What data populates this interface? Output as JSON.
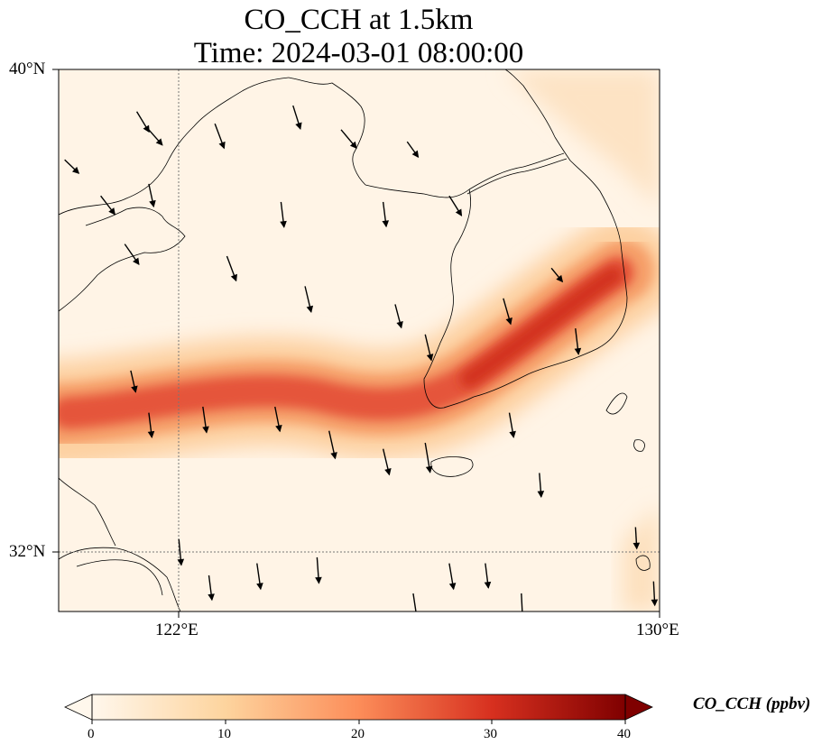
{
  "title": {
    "line1": "CO_CCH at 1.5km",
    "line2": "Time: 2024-03-01 08:00:00"
  },
  "axes": {
    "lat_ticks": [
      "40°N",
      "32°N"
    ],
    "lon_ticks": [
      "122°E",
      "130°E"
    ],
    "lat_range": [
      31,
      40
    ],
    "lon_range": [
      120,
      130
    ],
    "gridlines": "dotted at 122°E and 32°N"
  },
  "colorbar": {
    "label": "CO_CCH (ppbv)",
    "ticks": [
      "0",
      "10",
      "20",
      "30",
      "40"
    ],
    "range": [
      0,
      40
    ],
    "colormap": "OrRd",
    "extend": "both",
    "colors": [
      "#fff7ec",
      "#fdd49e",
      "#fc8d59",
      "#d7301f",
      "#7f0000"
    ]
  },
  "chart_data": {
    "type": "heatmap",
    "variable": "CO_CCH",
    "unit": "ppbv",
    "level": "1.5km",
    "time": "2024-03-01 08:00:00",
    "plume_band_path_lonlat": [
      [
        120.0,
        33.85
      ],
      [
        121.5,
        34.1
      ],
      [
        123.0,
        34.6
      ],
      [
        124.5,
        34.25
      ],
      [
        125.8,
        34.0
      ],
      [
        126.7,
        34.9
      ],
      [
        127.5,
        35.7
      ],
      [
        128.2,
        36.3
      ],
      [
        128.8,
        36.8
      ]
    ],
    "plume_peak_value": 25,
    "background_value": 2,
    "wind_vectors_lonlat": [
      [
        121.3,
        39.3,
        0.2,
        -0.33
      ],
      [
        121.5,
        39.0,
        0.22,
        -0.25
      ],
      [
        122.6,
        39.1,
        0.15,
        -0.4
      ],
      [
        123.9,
        39.4,
        0.12,
        -0.38
      ],
      [
        124.7,
        39.0,
        0.25,
        -0.3
      ],
      [
        125.8,
        38.8,
        0.18,
        -0.25
      ],
      [
        120.1,
        38.5,
        0.23,
        -0.22
      ],
      [
        120.7,
        37.9,
        0.23,
        -0.3
      ],
      [
        121.5,
        38.1,
        0.08,
        -0.37
      ],
      [
        123.7,
        37.8,
        0.05,
        -0.41
      ],
      [
        125.4,
        37.8,
        0.05,
        -0.4
      ],
      [
        126.5,
        37.9,
        0.2,
        -0.32
      ],
      [
        121.1,
        37.1,
        0.23,
        -0.33
      ],
      [
        122.8,
        36.9,
        0.15,
        -0.4
      ],
      [
        124.1,
        36.4,
        0.1,
        -0.42
      ],
      [
        125.6,
        36.1,
        0.1,
        -0.38
      ],
      [
        126.1,
        35.6,
        0.1,
        -0.42
      ],
      [
        127.4,
        36.2,
        0.12,
        -0.42
      ],
      [
        128.2,
        36.7,
        0.18,
        -0.22
      ],
      [
        128.6,
        35.7,
        0.05,
        -0.42
      ],
      [
        121.2,
        35.0,
        0.08,
        -0.35
      ],
      [
        121.5,
        34.3,
        0.05,
        -0.4
      ],
      [
        122.4,
        34.4,
        0.06,
        -0.42
      ],
      [
        123.6,
        34.4,
        0.08,
        -0.4
      ],
      [
        124.5,
        34.0,
        0.1,
        -0.45
      ],
      [
        125.4,
        33.7,
        0.1,
        -0.42
      ],
      [
        126.1,
        33.8,
        0.08,
        -0.48
      ],
      [
        127.5,
        34.3,
        0.07,
        -0.4
      ],
      [
        128.0,
        33.3,
        0.03,
        -0.39
      ],
      [
        122.0,
        32.2,
        0.04,
        -0.42
      ],
      [
        122.5,
        31.6,
        0.05,
        -0.4
      ],
      [
        123.3,
        31.8,
        0.06,
        -0.42
      ],
      [
        124.3,
        31.9,
        0.03,
        -0.42
      ],
      [
        125.9,
        31.3,
        0.06,
        -0.4
      ],
      [
        126.5,
        31.8,
        0.07,
        -0.42
      ],
      [
        127.1,
        31.8,
        0.05,
        -0.4
      ],
      [
        127.7,
        31.3,
        0.02,
        -0.4
      ],
      [
        129.6,
        32.4,
        0.02,
        -0.35
      ],
      [
        129.9,
        31.5,
        0.02,
        -0.39
      ]
    ]
  }
}
